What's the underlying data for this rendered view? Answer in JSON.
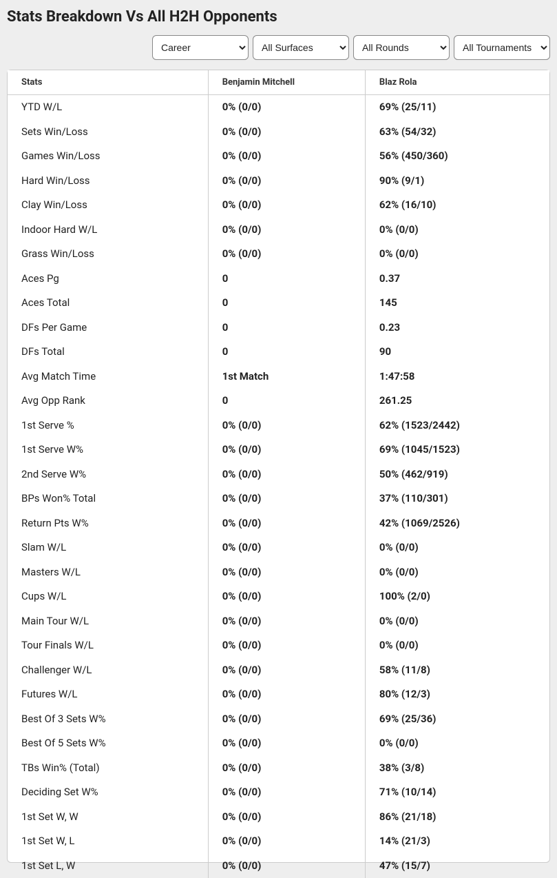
{
  "title": "Stats Breakdown Vs All H2H Opponents",
  "filters": {
    "career": "Career",
    "surface": "All Surfaces",
    "rounds": "All Rounds",
    "tournaments": "All Tournaments"
  },
  "columns": {
    "stats": "Stats",
    "player1": "Benjamin Mitchell",
    "player2": "Blaz Rola"
  },
  "rows": [
    {
      "label": "YTD W/L",
      "p1": "0% (0/0)",
      "p2": "69% (25/11)"
    },
    {
      "label": "Sets Win/Loss",
      "p1": "0% (0/0)",
      "p2": "63% (54/32)"
    },
    {
      "label": "Games Win/Loss",
      "p1": "0% (0/0)",
      "p2": "56% (450/360)"
    },
    {
      "label": "Hard Win/Loss",
      "p1": "0% (0/0)",
      "p2": "90% (9/1)"
    },
    {
      "label": "Clay Win/Loss",
      "p1": "0% (0/0)",
      "p2": "62% (16/10)"
    },
    {
      "label": "Indoor Hard W/L",
      "p1": "0% (0/0)",
      "p2": "0% (0/0)"
    },
    {
      "label": "Grass Win/Loss",
      "p1": "0% (0/0)",
      "p2": "0% (0/0)"
    },
    {
      "label": "Aces Pg",
      "p1": "0",
      "p2": "0.37"
    },
    {
      "label": "Aces Total",
      "p1": "0",
      "p2": "145"
    },
    {
      "label": "DFs Per Game",
      "p1": "0",
      "p2": "0.23"
    },
    {
      "label": "DFs Total",
      "p1": "0",
      "p2": "90"
    },
    {
      "label": "Avg Match Time",
      "p1": "1st Match",
      "p2": "1:47:58"
    },
    {
      "label": "Avg Opp Rank",
      "p1": "0",
      "p2": "261.25"
    },
    {
      "label": "1st Serve %",
      "p1": "0% (0/0)",
      "p2": "62% (1523/2442)"
    },
    {
      "label": "1st Serve W%",
      "p1": "0% (0/0)",
      "p2": "69% (1045/1523)"
    },
    {
      "label": "2nd Serve W%",
      "p1": "0% (0/0)",
      "p2": "50% (462/919)"
    },
    {
      "label": "BPs Won% Total",
      "p1": "0% (0/0)",
      "p2": "37% (110/301)"
    },
    {
      "label": "Return Pts W%",
      "p1": "0% (0/0)",
      "p2": "42% (1069/2526)"
    },
    {
      "label": "Slam W/L",
      "p1": "0% (0/0)",
      "p2": "0% (0/0)"
    },
    {
      "label": "Masters W/L",
      "p1": "0% (0/0)",
      "p2": "0% (0/0)"
    },
    {
      "label": "Cups W/L",
      "p1": "0% (0/0)",
      "p2": "100% (2/0)"
    },
    {
      "label": "Main Tour W/L",
      "p1": "0% (0/0)",
      "p2": "0% (0/0)"
    },
    {
      "label": "Tour Finals W/L",
      "p1": "0% (0/0)",
      "p2": "0% (0/0)"
    },
    {
      "label": "Challenger W/L",
      "p1": "0% (0/0)",
      "p2": "58% (11/8)"
    },
    {
      "label": "Futures W/L",
      "p1": "0% (0/0)",
      "p2": "80% (12/3)"
    },
    {
      "label": "Best Of 3 Sets W%",
      "p1": "0% (0/0)",
      "p2": "69% (25/36)"
    },
    {
      "label": "Best Of 5 Sets W%",
      "p1": "0% (0/0)",
      "p2": "0% (0/0)"
    },
    {
      "label": "TBs Win% (Total)",
      "p1": "0% (0/0)",
      "p2": "38% (3/8)"
    },
    {
      "label": "Deciding Set W%",
      "p1": "0% (0/0)",
      "p2": "71% (10/14)"
    },
    {
      "label": "1st Set W, W",
      "p1": "0% (0/0)",
      "p2": "86% (21/18)"
    },
    {
      "label": "1st Set W, L",
      "p1": "0% (0/0)",
      "p2": "14% (21/3)"
    },
    {
      "label": "1st Set L, W",
      "p1": "0% (0/0)",
      "p2": "47% (15/7)"
    }
  ],
  "style": {
    "page_bg": "#eeeeee",
    "table_border": "#cccccc",
    "header_text": "#333333",
    "cell_text": "#222222",
    "font_family": "system-ui"
  }
}
